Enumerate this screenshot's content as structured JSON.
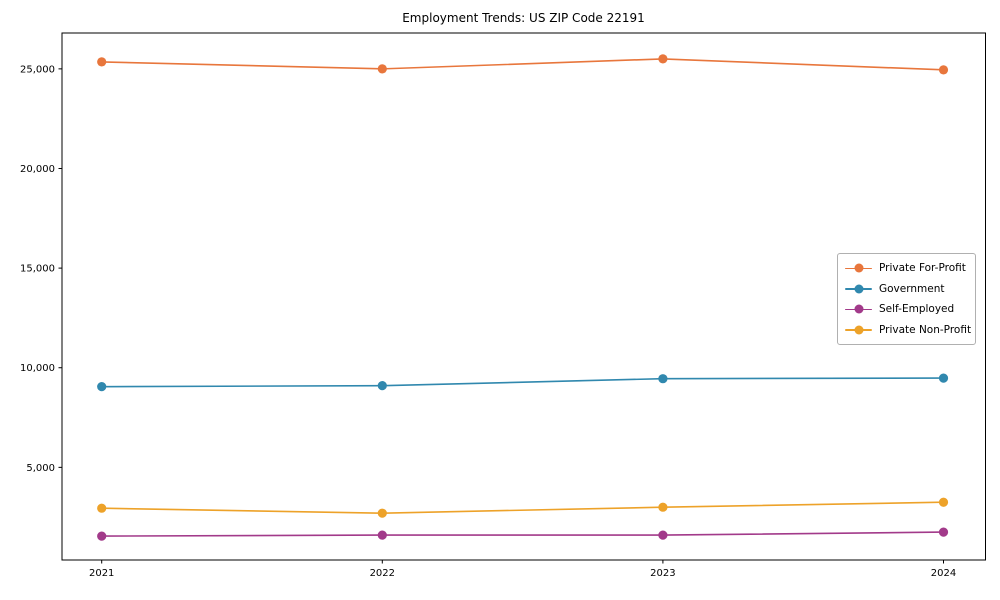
{
  "chart_data": {
    "type": "line",
    "title": "Employment Trends: US ZIP Code 22191",
    "xlabel": "",
    "ylabel": "",
    "x": [
      2021,
      2022,
      2023,
      2024
    ],
    "x_tick_labels": [
      "2021",
      "2022",
      "2023",
      "2024"
    ],
    "series": [
      {
        "name": "Private For-Profit",
        "color": "#e8763c",
        "values": [
          25350,
          25000,
          25500,
          24950
        ]
      },
      {
        "name": "Government",
        "color": "#3088ae",
        "values": [
          9050,
          9100,
          9450,
          9480
        ]
      },
      {
        "name": "Self-Employed",
        "color": "#a23a8a",
        "values": [
          1550,
          1600,
          1600,
          1750
        ]
      },
      {
        "name": "Private Non-Profit",
        "color": "#eda229",
        "values": [
          2950,
          2700,
          3000,
          3250
        ]
      }
    ],
    "yticks": [
      5000,
      10000,
      15000,
      20000,
      25000
    ],
    "ytick_labels": [
      "5,000",
      "10,000",
      "15,000",
      "20,000",
      "25,000"
    ],
    "ylim": [
      350,
      26800
    ],
    "grid": false,
    "legend_position": "center-right",
    "marker": "circle",
    "axis_color": "#000000"
  }
}
